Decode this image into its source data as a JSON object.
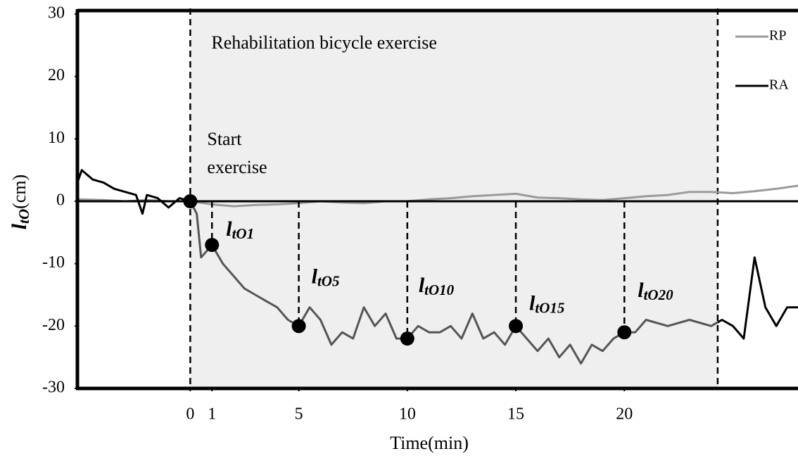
{
  "chart_data": {
    "type": "line",
    "annotation": "Rehabilitation bicycle exercise",
    "start_label": [
      "Start",
      "exercise"
    ],
    "x_label": "Time(min)",
    "y_label": {
      "main": "l",
      "sub": "tO",
      "unit": "(cm)"
    },
    "xlim": [
      -5.2,
      28
    ],
    "ylim": [
      -30,
      30
    ],
    "xticks": [
      0,
      1,
      5,
      10,
      15,
      20
    ],
    "yticks": [
      -30,
      -20,
      -10,
      0,
      10,
      20,
      30
    ],
    "shade": {
      "x0": 0,
      "x1": 24.3,
      "color": "#efefef"
    },
    "series": [
      {
        "name": "RP",
        "color": "#9a9a9a",
        "x": [
          -5.2,
          -4,
          -3,
          -2,
          -1,
          0,
          1,
          2,
          3,
          4,
          5,
          6,
          7,
          8,
          9,
          10,
          11,
          12,
          13,
          14,
          15,
          16,
          17,
          18,
          19,
          20,
          21,
          22,
          23,
          24,
          25,
          26,
          27,
          28
        ],
        "values": [
          0.3,
          0.2,
          0,
          0.2,
          0,
          0,
          -0.5,
          -0.8,
          -0.6,
          -0.5,
          -0.3,
          0,
          -0.2,
          -0.3,
          0,
          0,
          0.3,
          0.5,
          0.8,
          1,
          1.2,
          0.6,
          0.5,
          0.3,
          0.2,
          0.5,
          0.8,
          1,
          1.5,
          1.5,
          1.3,
          1.6,
          2,
          2.5
        ]
      },
      {
        "name": "RA",
        "color": "#000000",
        "exercise_color": "#555555",
        "x": [
          -5.2,
          -5,
          -4.5,
          -4,
          -3.5,
          -3,
          -2.5,
          -2.2,
          -2,
          -1.5,
          -1,
          -0.5,
          0,
          0.3,
          0.5,
          1,
          1.5,
          2,
          2.5,
          3,
          3.5,
          4,
          4.5,
          5,
          5.5,
          6,
          6.5,
          7,
          7.5,
          8,
          8.5,
          9,
          9.5,
          10,
          10.5,
          11,
          11.5,
          12,
          12.5,
          13,
          13.5,
          14,
          14.5,
          15,
          15.5,
          16,
          16.5,
          17,
          17.5,
          18,
          18.5,
          19,
          19.5,
          20,
          20.5,
          21,
          22,
          23,
          24,
          24.5,
          25,
          25.5,
          26,
          26.5,
          27,
          27.5,
          28
        ],
        "values": [
          3,
          5,
          3.5,
          3,
          2,
          1.5,
          1,
          -2,
          1,
          0.5,
          -1,
          0.5,
          0,
          -2,
          -9,
          -7,
          -10,
          -12,
          -14,
          -15,
          -16,
          -17,
          -19,
          -20,
          -17,
          -19,
          -23,
          -21,
          -22,
          -17,
          -20,
          -18,
          -22,
          -22,
          -20,
          -21,
          -21,
          -20,
          -22,
          -18,
          -22,
          -21,
          -23,
          -20,
          -22,
          -24,
          -22,
          -25,
          -23,
          -26,
          -23,
          -24,
          -22,
          -21,
          -21,
          -19,
          -20,
          -19,
          -20,
          -19,
          -20,
          -22,
          -9,
          -17,
          -20,
          -17,
          -17
        ]
      }
    ],
    "markers": [
      {
        "x": 0,
        "y": 0
      },
      {
        "x": 1,
        "y": -7,
        "label": "l",
        "sub": "tO1"
      },
      {
        "x": 5,
        "y": -20,
        "label": "l",
        "sub": "tO5"
      },
      {
        "x": 10,
        "y": -22,
        "label": "l",
        "sub": "tO10"
      },
      {
        "x": 15,
        "y": -20,
        "label": "l",
        "sub": "tO15"
      },
      {
        "x": 20,
        "y": -21,
        "label": "l",
        "sub": "tO20"
      }
    ]
  }
}
